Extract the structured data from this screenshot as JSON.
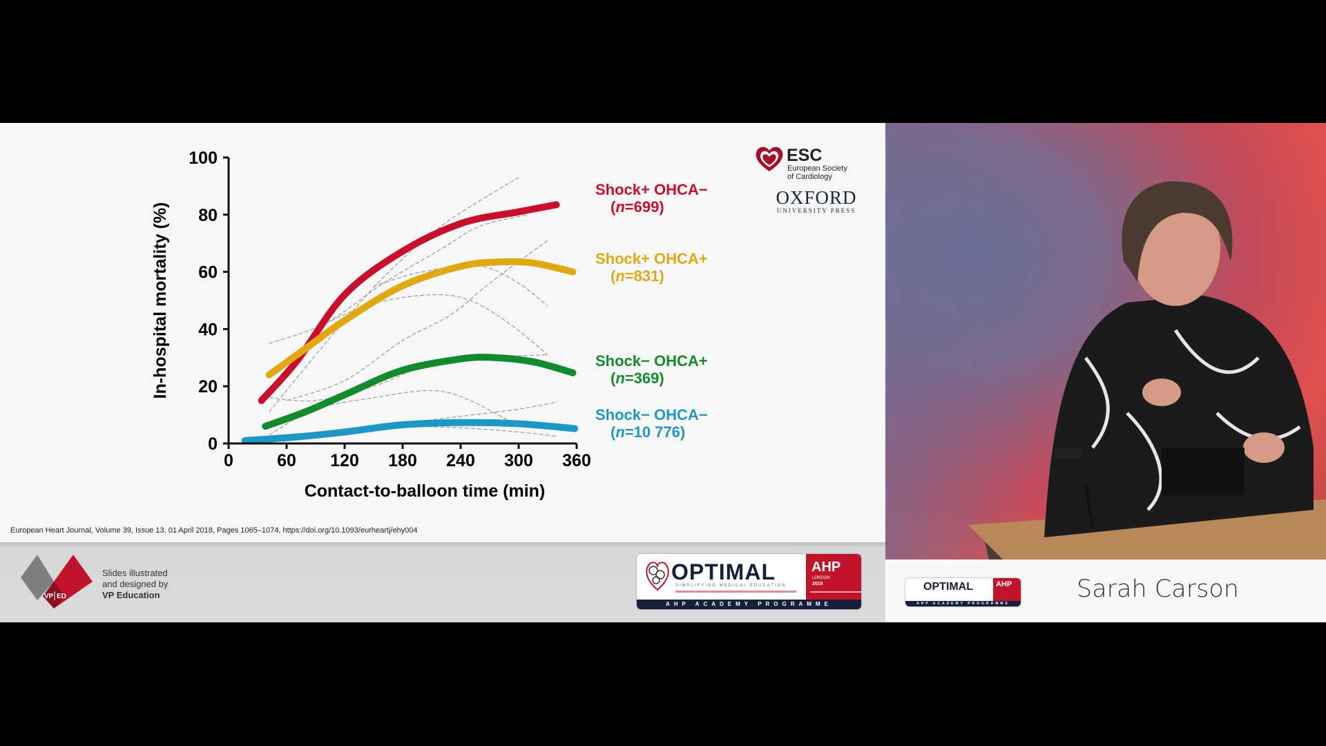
{
  "slide": {
    "citation": "European Heart Journal, Volume 39, Issue 13, 01 April 2018, Pages 1065–1074, https://doi.org/10.1093/eurheartj/ehy004",
    "logos": {
      "esc": {
        "name": "ESC",
        "line1": "European Society",
        "line2": "of Cardiology"
      },
      "oxford": {
        "name": "OXFORD",
        "sub": "UNIVERSITY PRESS"
      }
    }
  },
  "footer": {
    "vped": {
      "mark_left": "VP",
      "mark_right": "ED",
      "line1": "Slides illustrated",
      "line2": "and designed by",
      "line3": "VP Education"
    },
    "optimal": {
      "word": "OPTIMAL",
      "tagline": "SIMPLIFYING MEDICAL EDUCATION",
      "ahp": "AHP",
      "city": "LONDON",
      "year": "2019",
      "programme": "AHP ACADEMY PROGRAMME"
    }
  },
  "speaker": {
    "name": "Sarah Carson"
  },
  "colors": {
    "red": "#c8102e",
    "yellow": "#e0a913",
    "green": "#138a2c",
    "blue": "#1f97c4",
    "ci": "#9a9a9a"
  },
  "chart_data": {
    "type": "line",
    "xlabel": "Contact-to-balloon time (min)",
    "ylabel": "In-hospital mortality (%)",
    "xlim": [
      0,
      360
    ],
    "ylim": [
      0,
      100
    ],
    "xticks": [
      "0",
      "60",
      "120",
      "180",
      "240",
      "300",
      "360"
    ],
    "yticks": [
      "0",
      "20",
      "40",
      "60",
      "80",
      "100"
    ],
    "grid": false,
    "legend_placement": "right",
    "n_symbol": "n",
    "series": [
      {
        "name": "Shock+ OHCA−",
        "n_text": "=699",
        "color": "#c8102e",
        "x": [
          34,
          71,
          120,
          179,
          241,
          300,
          339
        ],
        "y": [
          15,
          29,
          52,
          67,
          77,
          81,
          83.5
        ]
      },
      {
        "name": "Shock+ OHCA+",
        "n_text": "=831",
        "color": "#e0a913",
        "x": [
          42,
          83,
          120,
          179,
          241,
          284,
          317,
          356
        ],
        "y": [
          24,
          34,
          43,
          55,
          62,
          63.5,
          63,
          60
        ]
      },
      {
        "name": "Shock− OHCA+",
        "n_text": "=369",
        "color": "#138a2c",
        "x": [
          38,
          79,
          120,
          179,
          241,
          276,
          317,
          356
        ],
        "y": [
          6,
          11,
          17,
          25.5,
          29.6,
          30,
          28.4,
          24.7
        ]
      },
      {
        "name": "Shock− OHCA−",
        "n_text": "=10 776",
        "color": "#1f97c4",
        "x": [
          17,
          71,
          120,
          179,
          241,
          300,
          358
        ],
        "y": [
          1,
          2.3,
          4,
          6.5,
          7.3,
          6.9,
          5.2
        ]
      }
    ],
    "confidence_bounds": [
      {
        "x": [
          42,
          100,
          160,
          220,
          280,
          300
        ],
        "y": [
          11,
          35,
          58,
          76,
          89,
          93
        ]
      },
      {
        "x": [
          42,
          100,
          160,
          220,
          260,
          310
        ],
        "y": [
          35,
          42,
          56,
          68,
          76,
          80
        ]
      },
      {
        "x": [
          60,
          120,
          180,
          230,
          270,
          330
        ],
        "y": [
          15,
          22,
          36,
          45,
          56,
          71
        ]
      },
      {
        "x": [
          100,
          150,
          210,
          250,
          290,
          330
        ],
        "y": [
          42,
          49,
          52,
          50,
          42,
          31
        ]
      },
      {
        "x": [
          150,
          200,
          260,
          300,
          330
        ],
        "y": [
          55,
          60,
          62,
          56,
          48
        ]
      },
      {
        "x": [
          42,
          90,
          150,
          210,
          250,
          300
        ],
        "y": [
          3,
          12,
          16,
          18.5,
          15,
          6
        ]
      },
      {
        "x": [
          42,
          90,
          150,
          210,
          260,
          330
        ],
        "y": [
          16,
          15,
          20,
          28,
          30,
          31
        ]
      },
      {
        "x": [
          180,
          240,
          300,
          340
        ],
        "y": [
          7,
          9.5,
          12,
          14.5
        ]
      },
      {
        "x": [
          180,
          240,
          300,
          340
        ],
        "y": [
          6,
          5.5,
          4,
          2.5
        ]
      }
    ]
  }
}
